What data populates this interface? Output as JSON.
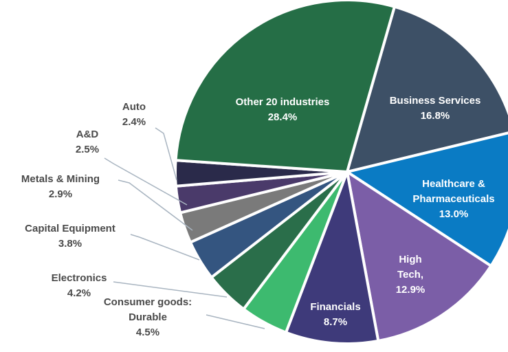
{
  "chart_data": {
    "type": "pie",
    "categories": [
      "Business Services",
      "Healthcare & Pharmaceuticals",
      "High Tech,",
      "Financials",
      "Consumer goods: Durable",
      "Electronics",
      "Capital Equipment",
      "Metals & Mining",
      "A&D",
      "Auto",
      "Other 20 industries"
    ],
    "values": [
      16.8,
      13.0,
      12.9,
      8.7,
      4.5,
      4.2,
      3.8,
      2.9,
      2.5,
      2.4,
      28.4
    ],
    "value_labels": [
      "16.8%",
      "13.0%",
      "12.9%",
      "8.7%",
      "4.5%",
      "4.2%",
      "3.8%",
      "2.9%",
      "2.5%",
      "2.4%",
      "28.4%"
    ],
    "colors": [
      "#3d5066",
      "#0a7bc4",
      "#7b5ea7",
      "#3e3a7a",
      "#3dba6f",
      "#2a6e4a",
      "#345580",
      "#7a7a7a",
      "#4a3a6a",
      "#2a2a4a",
      "#256e46"
    ]
  }
}
